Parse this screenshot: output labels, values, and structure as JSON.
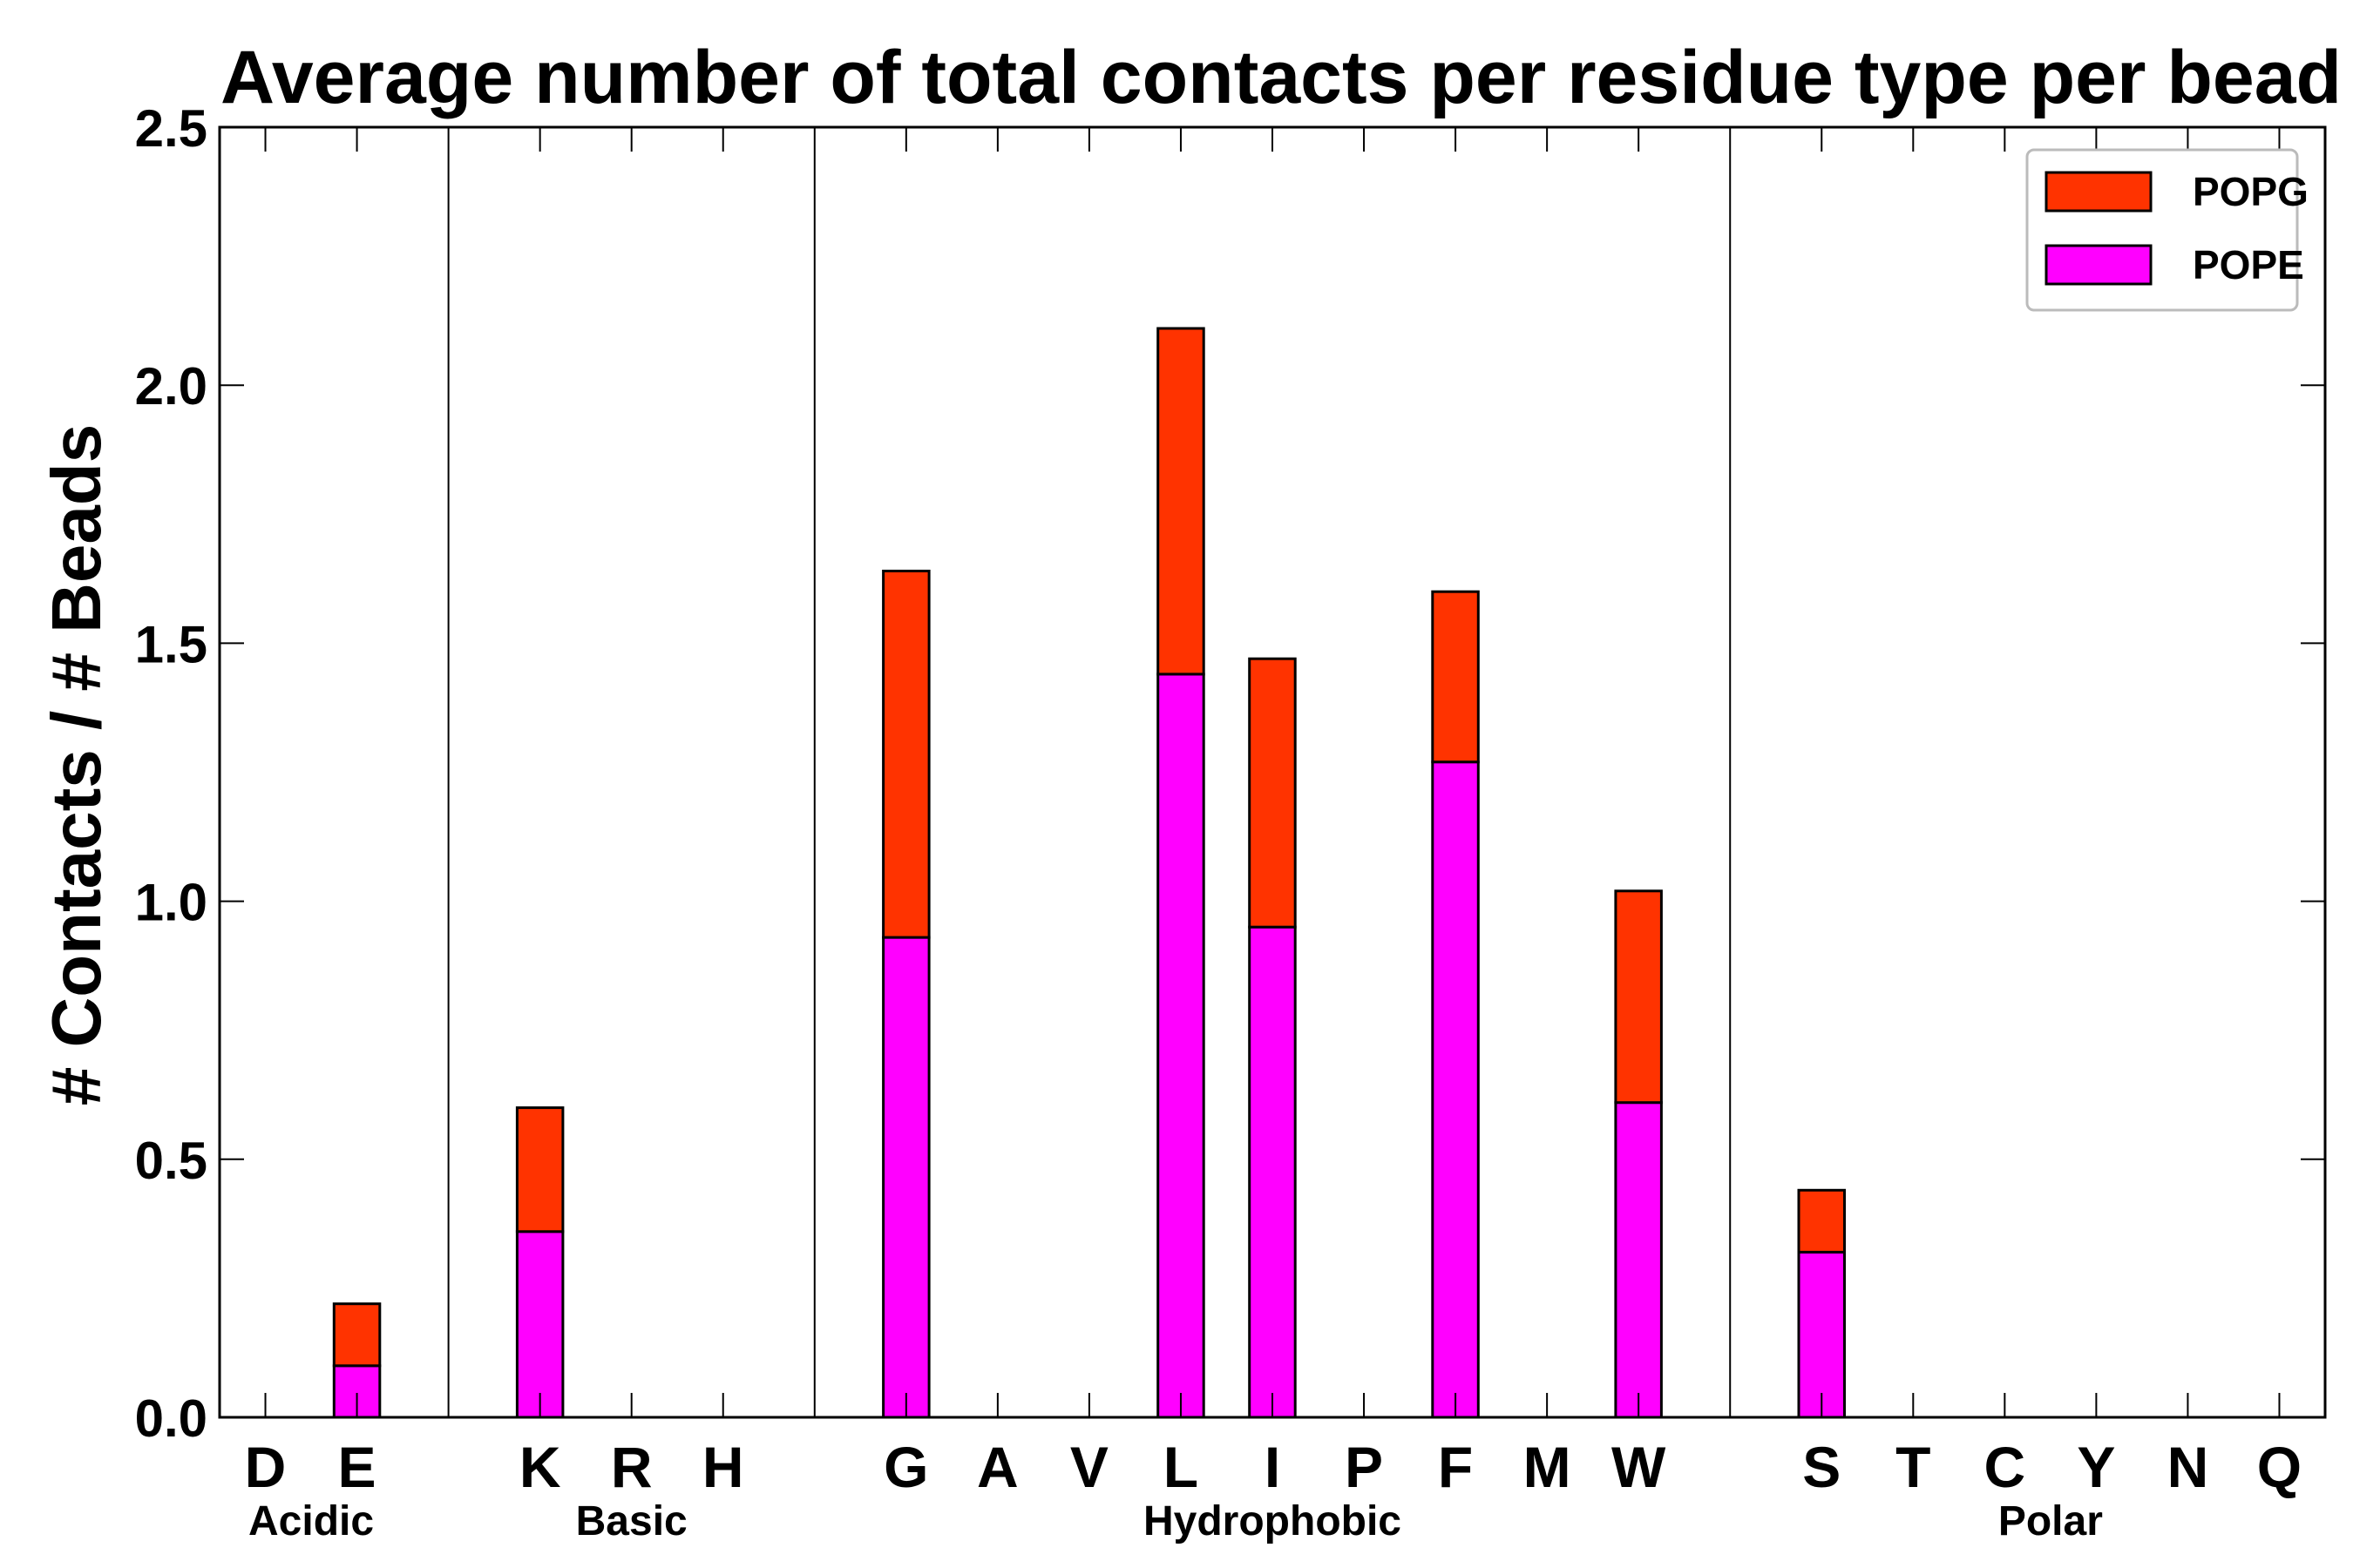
{
  "chart_data": {
    "type": "bar",
    "stacked": true,
    "title": "Average number of total contacts per residue type per bead",
    "xlabel": "",
    "ylabel": "# Contacts / # Beads",
    "ylim": [
      0,
      2.5
    ],
    "yticks": [
      "0.0",
      "0.5",
      "1.0",
      "1.5",
      "2.0",
      "2.5"
    ],
    "categories": [
      "D",
      "E",
      "",
      "K",
      "R",
      "H",
      "",
      "G",
      "A",
      "V",
      "L",
      "I",
      "P",
      "F",
      "M",
      "W",
      "",
      "S",
      "T",
      "C",
      "Y",
      "N",
      "Q"
    ],
    "groups": [
      {
        "label": "Acidic",
        "first": 0,
        "last": 1
      },
      {
        "label": "Basic",
        "first": 3,
        "last": 5
      },
      {
        "label": "Hydrophobic",
        "first": 7,
        "last": 15
      },
      {
        "label": "Polar",
        "first": 17,
        "last": 22
      }
    ],
    "series": [
      {
        "name": "POPE",
        "color": "#ff00ff",
        "values": [
          0,
          0.1,
          0,
          0.36,
          0,
          0,
          0,
          0.93,
          0,
          0,
          1.44,
          0.95,
          0,
          1.27,
          0,
          0.61,
          0,
          0.32,
          0,
          0,
          0,
          0,
          0
        ]
      },
      {
        "name": "POPG",
        "color": "#ff3300",
        "values": [
          0,
          0.12,
          0,
          0.24,
          0,
          0,
          0,
          0.71,
          0,
          0,
          0.67,
          0.52,
          0,
          0.33,
          0,
          0.41,
          0,
          0.12,
          0,
          0,
          0,
          0,
          0
        ]
      }
    ],
    "legend_order": [
      "POPG",
      "POPE"
    ],
    "legend_position": "top-right",
    "grid": false
  }
}
